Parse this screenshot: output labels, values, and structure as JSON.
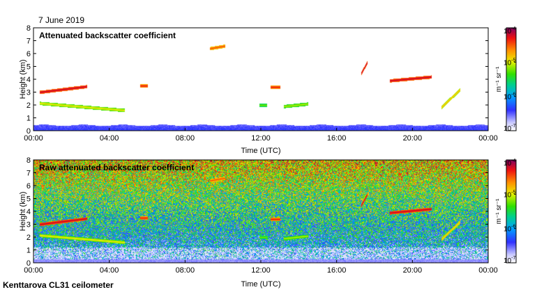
{
  "page": {
    "date": "7 June 2019",
    "site_label": "Kenttarova CL31 ceilometer"
  },
  "chart_data": [
    {
      "type": "heatmap",
      "title": "Attenuated backscatter coefficient",
      "xlabel": "Time (UTC)",
      "ylabel": "Height (km)",
      "x_ticks": [
        "00:00",
        "04:00",
        "08:00",
        "12:00",
        "16:00",
        "20:00",
        "00:00"
      ],
      "y_ticks": [
        "0",
        "1",
        "2",
        "3",
        "4",
        "5",
        "6",
        "7",
        "8"
      ],
      "ylim": [
        0,
        8
      ],
      "xlim_hours": [
        0,
        24
      ],
      "colorbar": {
        "ticks": [
          "10^-7",
          "10^-6",
          "10^-5",
          "10^-4"
        ],
        "label": "m^-1 sr^-1",
        "scale": "log",
        "range": [
          1e-07,
          0.0001
        ]
      },
      "features": [
        {
          "name": "boundary-layer",
          "t0": 0,
          "t1": 24,
          "h_top": 0.45,
          "level": 0.18
        },
        {
          "name": "cloud-layer-1",
          "t0": 0.3,
          "t1": 2.8,
          "h0": 3.0,
          "h1": 3.45,
          "level": 0.95
        },
        {
          "name": "cloud-layer-2",
          "t0": 0.3,
          "t1": 4.8,
          "h0": 2.15,
          "h1": 1.6,
          "level": 0.7
        },
        {
          "name": "cloud-6.5km",
          "t0": 9.3,
          "t1": 10.1,
          "h0": 6.4,
          "h1": 6.6,
          "level": 0.85
        },
        {
          "name": "cloud-3.5km",
          "t0": 5.6,
          "t1": 6.0,
          "h0": 3.5,
          "h1": 3.5,
          "level": 0.9
        },
        {
          "name": "cloud-2km-a",
          "t0": 11.9,
          "t1": 12.3,
          "h0": 2.0,
          "h1": 2.0,
          "level": 0.6
        },
        {
          "name": "cloud-3.4km",
          "t0": 12.5,
          "t1": 13.0,
          "h0": 3.4,
          "h1": 3.4,
          "level": 0.9
        },
        {
          "name": "cloud-2km-b",
          "t0": 13.2,
          "t1": 14.5,
          "h0": 1.9,
          "h1": 2.1,
          "level": 0.65
        },
        {
          "name": "cloud-5km",
          "t0": 17.3,
          "t1": 17.6,
          "h0": 4.5,
          "h1": 5.3,
          "level": 0.95
        },
        {
          "name": "cloud-4km",
          "t0": 18.8,
          "t1": 21.0,
          "h0": 3.9,
          "h1": 4.2,
          "level": 0.95
        },
        {
          "name": "cloud-2km-c",
          "t0": 21.5,
          "t1": 22.5,
          "h0": 1.8,
          "h1": 3.2,
          "level": 0.75
        }
      ]
    },
    {
      "type": "heatmap",
      "title": "Raw attenuated backscatter coefficient",
      "xlabel": "Time (UTC)",
      "ylabel": "Height (km)",
      "x_ticks": [
        "00:00",
        "04:00",
        "08:00",
        "12:00",
        "16:00",
        "20:00",
        "00:00"
      ],
      "y_ticks": [
        "0",
        "1",
        "2",
        "3",
        "4",
        "5",
        "6",
        "7",
        "8"
      ],
      "ylim": [
        0,
        8
      ],
      "xlim_hours": [
        0,
        24
      ],
      "colorbar": {
        "ticks": [
          "10^-7",
          "10^-6",
          "10^-5",
          "10^-4"
        ],
        "label": "m^-1 sr^-1",
        "scale": "log",
        "range": [
          1e-07,
          0.0001
        ]
      },
      "noise_profile": {
        "low_level": 0.25,
        "high_level": 0.75,
        "description": "noise increases with height"
      }
    }
  ]
}
